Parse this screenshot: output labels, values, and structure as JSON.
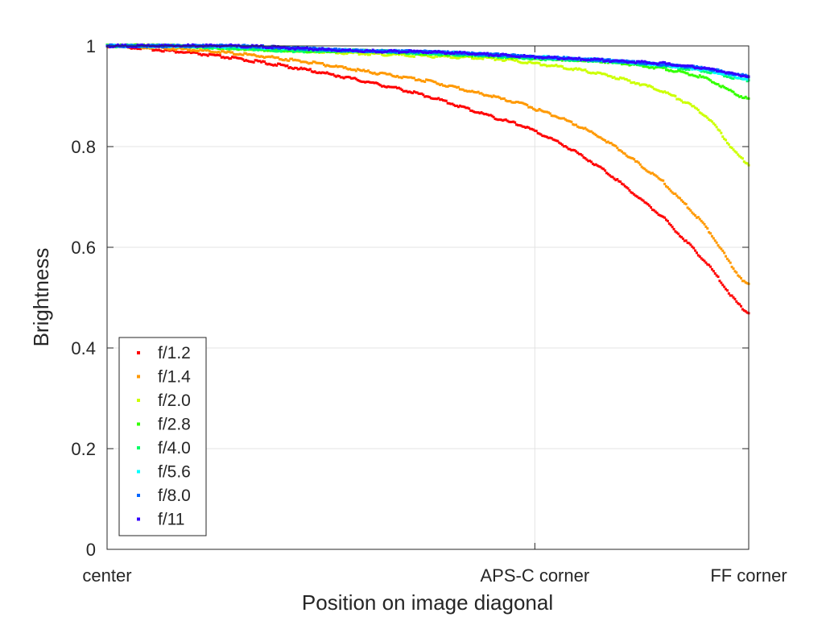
{
  "chart_data": {
    "type": "scatter",
    "title": "",
    "xlabel": "Position on image diagonal",
    "ylabel": "Brightness",
    "xlim": [
      0,
      1.5
    ],
    "ylim": [
      0,
      1
    ],
    "x_ticks": [
      {
        "value": 0,
        "label": "center"
      },
      {
        "value": 1,
        "label": "APS-C corner"
      },
      {
        "value": 1.5,
        "label": "FF corner"
      }
    ],
    "y_ticks": [
      {
        "value": 0,
        "label": "0"
      },
      {
        "value": 0.2,
        "label": "0.2"
      },
      {
        "value": 0.4,
        "label": "0.4"
      },
      {
        "value": 0.6,
        "label": "0.6"
      },
      {
        "value": 0.8,
        "label": "0.8"
      },
      {
        "value": 1,
        "label": "1"
      }
    ],
    "grid": true,
    "legend_position": "bottom-left",
    "x": [
      0,
      0.15,
      0.3,
      0.45,
      0.6,
      0.75,
      0.9,
      1.0,
      1.15,
      1.3,
      1.4,
      1.5
    ],
    "series": [
      {
        "name": "f/1.2",
        "color": "#ff0000",
        "values": [
          1.0,
          0.99,
          0.975,
          0.955,
          0.93,
          0.9,
          0.86,
          0.83,
          0.76,
          0.66,
          0.57,
          0.47
        ]
      },
      {
        "name": "f/1.4",
        "color": "#ff9900",
        "values": [
          1.0,
          0.995,
          0.985,
          0.97,
          0.95,
          0.93,
          0.9,
          0.875,
          0.82,
          0.73,
          0.64,
          0.525
        ]
      },
      {
        "name": "f/2.0",
        "color": "#ccff00",
        "values": [
          1.0,
          1.0,
          0.995,
          0.99,
          0.985,
          0.98,
          0.975,
          0.965,
          0.945,
          0.91,
          0.86,
          0.765
        ]
      },
      {
        "name": "f/2.8",
        "color": "#33ff00",
        "values": [
          1.0,
          1.0,
          0.995,
          0.99,
          0.99,
          0.985,
          0.98,
          0.975,
          0.97,
          0.955,
          0.935,
          0.895
        ]
      },
      {
        "name": "f/4.0",
        "color": "#00ff66",
        "values": [
          1.0,
          1.0,
          0.995,
          0.99,
          0.99,
          0.985,
          0.98,
          0.975,
          0.97,
          0.96,
          0.95,
          0.932
        ]
      },
      {
        "name": "f/5.6",
        "color": "#00ffff",
        "values": [
          1.0,
          1.0,
          0.998,
          0.995,
          0.99,
          0.988,
          0.983,
          0.978,
          0.972,
          0.962,
          0.952,
          0.935
        ]
      },
      {
        "name": "f/8.0",
        "color": "#0066ff",
        "values": [
          1.0,
          1.0,
          1.0,
          0.995,
          0.99,
          0.988,
          0.983,
          0.978,
          0.972,
          0.963,
          0.955,
          0.94
        ]
      },
      {
        "name": "f/11",
        "color": "#3300ff",
        "values": [
          1.0,
          1.0,
          1.0,
          0.995,
          0.99,
          0.988,
          0.983,
          0.978,
          0.972,
          0.965,
          0.955,
          0.94
        ]
      }
    ]
  }
}
